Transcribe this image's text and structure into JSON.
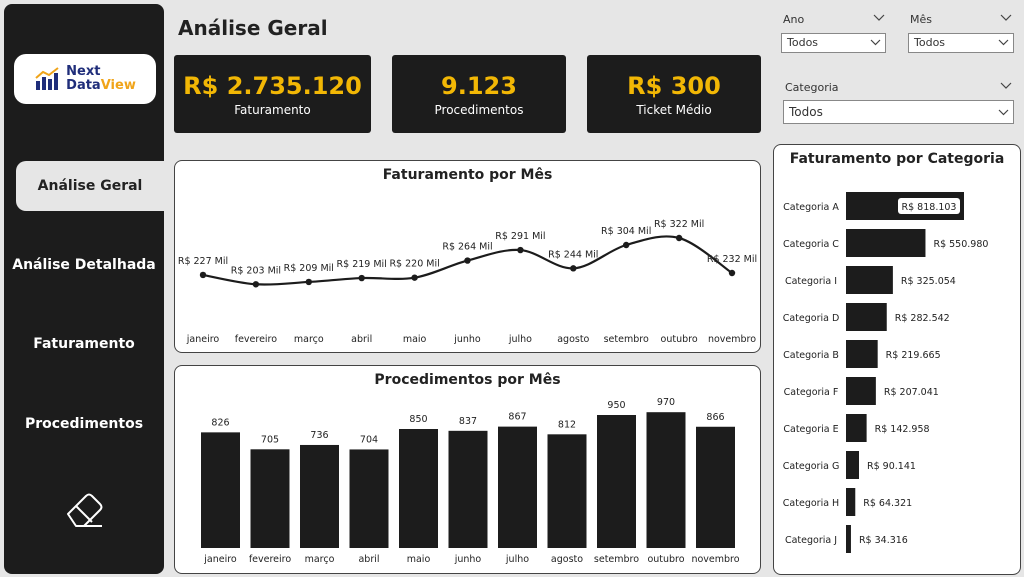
{
  "page_title": "Análise Geral",
  "logo": {
    "line1": "Next",
    "line2a": "Data",
    "line2b": "View"
  },
  "nav": [
    {
      "label": "Análise Geral",
      "active": true
    },
    {
      "label": "Análise Detalhada",
      "active": false
    },
    {
      "label": "Faturamento",
      "active": false
    },
    {
      "label": "Procedimentos",
      "active": false
    }
  ],
  "kpis": [
    {
      "value": "R$ 2.735.120",
      "label": "Faturamento"
    },
    {
      "value": "9.123",
      "label": "Procedimentos"
    },
    {
      "value": "R$ 300",
      "label": "Ticket Médio"
    }
  ],
  "filters": {
    "ano": {
      "label": "Ano",
      "value": "Todos"
    },
    "mes": {
      "label": "Mês",
      "value": "Todos"
    },
    "categoria": {
      "label": "Categoria",
      "value": "Todos"
    }
  },
  "colors": {
    "kpi_value": "#f2b705",
    "dark": "#1c1c1c"
  },
  "chart_data": [
    {
      "type": "line",
      "title": "Faturamento por Mês",
      "categories": [
        "janeiro",
        "fevereiro",
        "março",
        "abril",
        "maio",
        "junho",
        "julho",
        "agosto",
        "setembro",
        "outubro",
        "novembro"
      ],
      "values": [
        227,
        203,
        209,
        219,
        220,
        264,
        291,
        244,
        304,
        322,
        232
      ],
      "labels": [
        "R$ 227 Mil",
        "R$ 203 Mil",
        "R$ 209 Mil",
        "R$ 219 Mil",
        "R$ 220 Mil",
        "R$ 264 Mil",
        "R$ 291 Mil",
        "R$ 244 Mil",
        "R$ 304 Mil",
        "R$ 322 Mil",
        "R$ 232 Mil"
      ],
      "ylim": [
        160,
        340
      ]
    },
    {
      "type": "bar",
      "title": "Procedimentos por Mês",
      "categories": [
        "janeiro",
        "fevereiro",
        "março",
        "abril",
        "maio",
        "junho",
        "julho",
        "agosto",
        "setembro",
        "outubro",
        "novembro"
      ],
      "values": [
        826,
        705,
        736,
        704,
        850,
        837,
        867,
        812,
        950,
        970,
        866
      ],
      "ylim": [
        0,
        1000
      ]
    },
    {
      "type": "bar",
      "orientation": "horizontal",
      "title": "Faturamento por Categoria",
      "categories": [
        "Categoria A",
        "Categoria C",
        "Categoria I",
        "Categoria D",
        "Categoria B",
        "Categoria F",
        "Categoria E",
        "Categoria G",
        "Categoria H",
        "Categoria J"
      ],
      "values": [
        818103,
        550980,
        325054,
        282542,
        219665,
        207041,
        142958,
        90141,
        64321,
        34316
      ],
      "labels": [
        "R$ 818.103",
        "R$ 550.980",
        "R$ 325.054",
        "R$ 282.542",
        "R$ 219.665",
        "R$ 207.041",
        "R$ 142.958",
        "R$ 90.141",
        "R$ 64.321",
        "R$ 34.316"
      ]
    }
  ]
}
